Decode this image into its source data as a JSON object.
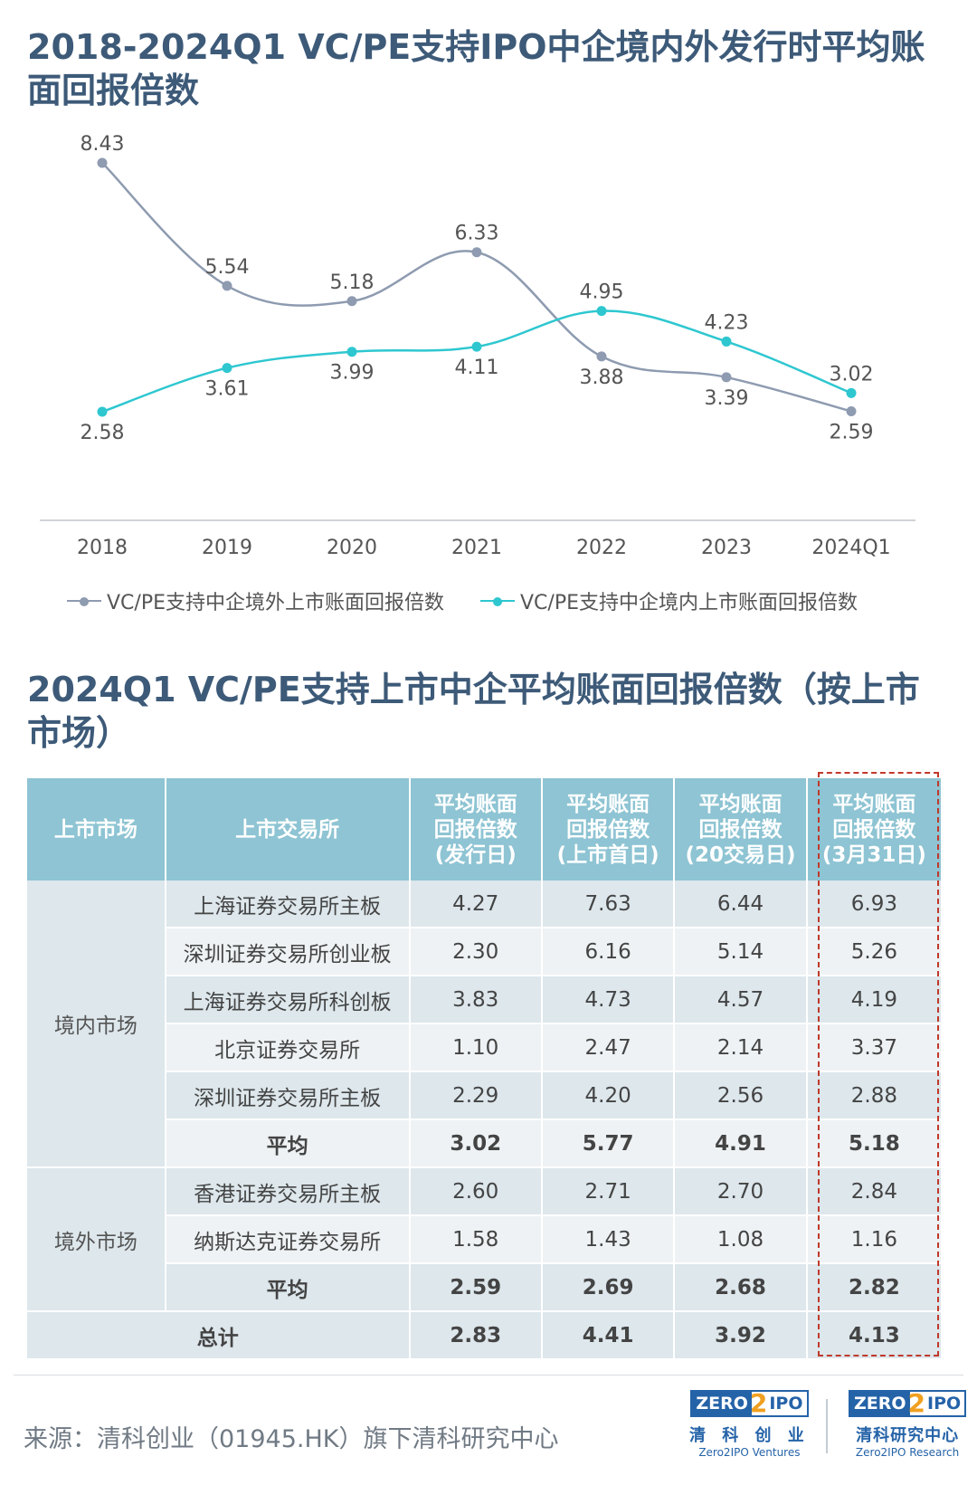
{
  "header": {
    "chart_title": "2018-2024Q1 VC/PE支持IPO中企境内外发行时平均账面回报倍数",
    "table_title": "2024Q1 VC/PE支持上市中企平均账面回报倍数（按上市市场）"
  },
  "chart_data": {
    "type": "line",
    "title": "2018-2024Q1 VC/PE支持IPO中企境内外发行时平均账面回报倍数",
    "categories": [
      "2018",
      "2019",
      "2020",
      "2021",
      "2022",
      "2023",
      "2024Q1"
    ],
    "series": [
      {
        "name": "VC/PE支持中企境外上市账面回报倍数",
        "color": "#8e9bb0",
        "values": [
          8.43,
          5.54,
          5.18,
          6.33,
          3.88,
          3.39,
          2.59
        ],
        "labels": [
          "8.43",
          "5.54",
          "5.18",
          "6.33",
          "3.88",
          "3.39",
          "2.59"
        ]
      },
      {
        "name": "VC/PE支持中企境内上市账面回报倍数",
        "color": "#2ec7d0",
        "values": [
          2.58,
          3.61,
          3.99,
          4.11,
          4.95,
          4.23,
          3.02
        ],
        "labels": [
          "2.58",
          "3.61",
          "3.99",
          "4.11",
          "4.95",
          "4.23",
          "3.02"
        ]
      }
    ],
    "ylim": [
      0,
      9
    ],
    "grid": false,
    "legend": "bottom"
  },
  "table": {
    "headers": [
      "上市市场",
      "上市交易所",
      "平均账面回报倍数(发行日)",
      "平均账面回报倍数(上市首日)",
      "平均账面回报倍数(20交易日)",
      "平均账面回报倍数(3月31日)"
    ],
    "header_lines": [
      [
        "上市市场"
      ],
      [
        "上市交易所"
      ],
      [
        "平均账面",
        "回报倍数",
        "(发行日)"
      ],
      [
        "平均账面",
        "回报倍数",
        "(上市首日)"
      ],
      [
        "平均账面",
        "回报倍数",
        "(20交易日)"
      ],
      [
        "平均账面",
        "回报倍数",
        "(3月31日)"
      ]
    ],
    "groups": [
      {
        "market": "境内市场",
        "rows": [
          {
            "exchange": "上海证券交易所主板",
            "values": [
              "4.27",
              "7.63",
              "6.44",
              "6.93"
            ]
          },
          {
            "exchange": "深圳证券交易所创业板",
            "values": [
              "2.30",
              "6.16",
              "5.14",
              "5.26"
            ]
          },
          {
            "exchange": "上海证券交易所科创板",
            "values": [
              "3.83",
              "4.73",
              "4.57",
              "4.19"
            ]
          },
          {
            "exchange": "北京证券交易所",
            "values": [
              "1.10",
              "2.47",
              "2.14",
              "3.37"
            ]
          },
          {
            "exchange": "深圳证券交易所主板",
            "values": [
              "2.29",
              "4.20",
              "2.56",
              "2.88"
            ]
          },
          {
            "exchange": "平均",
            "values": [
              "3.02",
              "5.77",
              "4.91",
              "5.18"
            ],
            "avg": true
          }
        ]
      },
      {
        "market": "境外市场",
        "rows": [
          {
            "exchange": "香港证券交易所主板",
            "values": [
              "2.60",
              "2.71",
              "2.70",
              "2.84"
            ]
          },
          {
            "exchange": "纳斯达克证券交易所",
            "values": [
              "1.58",
              "1.43",
              "1.08",
              "1.16"
            ]
          },
          {
            "exchange": "平均",
            "values": [
              "2.59",
              "2.69",
              "2.68",
              "2.82"
            ],
            "avg": true
          }
        ]
      }
    ],
    "total": {
      "label": "总计",
      "values": [
        "2.83",
        "4.41",
        "3.92",
        "4.13"
      ]
    }
  },
  "footer": {
    "source": "来源：清科创业（01945.HK）旗下清科研究中心",
    "logos": [
      {
        "zero": "ZERO",
        "two": "2",
        "ipo": "IPO",
        "cn": "清 科 创 业",
        "en": "Zero2IPO Ventures"
      },
      {
        "zero": "ZERO",
        "two": "2",
        "ipo": "IPO",
        "cn": "清科研究中心",
        "en": "Zero2IPO Research"
      }
    ]
  },
  "colors": {
    "title": "#3d5a78",
    "header_bg": "#8ec4d3",
    "series_out": "#8e9bb0",
    "series_in": "#2ec7d0",
    "highlight": "#c0392b"
  }
}
